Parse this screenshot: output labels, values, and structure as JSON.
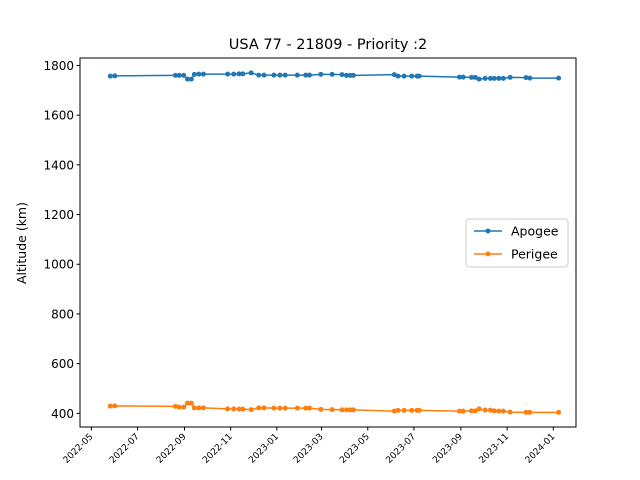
{
  "chart_data": {
    "type": "line",
    "title": "USA 77 - 21809 - Priority :2",
    "xlabel": "",
    "ylabel": "Altitude (km)",
    "x_axis_type": "date",
    "xlim": [
      "2022-04-16",
      "2024-01-31"
    ],
    "ylim": [
      345,
      1830
    ],
    "x_ticks": [
      "2022-05",
      "2022-07",
      "2022-09",
      "2022-11",
      "2023-01",
      "2023-03",
      "2023-05",
      "2023-07",
      "2023-09",
      "2023-11",
      "2024-01"
    ],
    "y_ticks": [
      400,
      600,
      800,
      1000,
      1200,
      1400,
      1600,
      1800
    ],
    "grid": false,
    "legend_position": "center-right",
    "series": [
      {
        "name": "Apogee",
        "color": "#1f77b4",
        "points": [
          [
            "2022-05-26",
            1757
          ],
          [
            "2022-06-01",
            1758
          ],
          [
            "2022-08-20",
            1760
          ],
          [
            "2022-08-25",
            1760
          ],
          [
            "2022-08-31",
            1760
          ],
          [
            "2022-09-05",
            1745
          ],
          [
            "2022-09-10",
            1745
          ],
          [
            "2022-09-14",
            1764
          ],
          [
            "2022-09-20",
            1765
          ],
          [
            "2022-09-26",
            1765
          ],
          [
            "2022-10-28",
            1765
          ],
          [
            "2022-11-05",
            1765
          ],
          [
            "2022-11-12",
            1766
          ],
          [
            "2022-11-17",
            1766
          ],
          [
            "2022-11-28",
            1770
          ],
          [
            "2022-12-08",
            1761
          ],
          [
            "2022-12-15",
            1761
          ],
          [
            "2022-12-28",
            1761
          ],
          [
            "2023-01-05",
            1761
          ],
          [
            "2023-01-12",
            1761
          ],
          [
            "2023-01-28",
            1761
          ],
          [
            "2023-02-08",
            1761
          ],
          [
            "2023-02-13",
            1761
          ],
          [
            "2023-02-28",
            1764
          ],
          [
            "2023-03-15",
            1764
          ],
          [
            "2023-03-28",
            1763
          ],
          [
            "2023-04-03",
            1760
          ],
          [
            "2023-04-08",
            1760
          ],
          [
            "2023-04-12",
            1760
          ],
          [
            "2023-06-05",
            1763
          ],
          [
            "2023-06-10",
            1757
          ],
          [
            "2023-06-18",
            1757
          ],
          [
            "2023-06-28",
            1757
          ],
          [
            "2023-07-05",
            1757
          ],
          [
            "2023-07-08",
            1757
          ],
          [
            "2023-08-30",
            1753
          ],
          [
            "2023-09-04",
            1753
          ],
          [
            "2023-09-15",
            1752
          ],
          [
            "2023-09-20",
            1752
          ],
          [
            "2023-09-25",
            1745
          ],
          [
            "2023-10-03",
            1748
          ],
          [
            "2023-10-10",
            1748
          ],
          [
            "2023-10-15",
            1748
          ],
          [
            "2023-10-21",
            1748
          ],
          [
            "2023-10-27",
            1748
          ],
          [
            "2023-11-05",
            1752
          ],
          [
            "2023-11-26",
            1751
          ],
          [
            "2023-12-01",
            1749
          ],
          [
            "2024-01-08",
            1749
          ]
        ]
      },
      {
        "name": "Perigee",
        "color": "#ff7f0e",
        "points": [
          [
            "2022-05-26",
            429
          ],
          [
            "2022-06-01",
            430
          ],
          [
            "2022-08-20",
            428
          ],
          [
            "2022-08-25",
            425
          ],
          [
            "2022-08-31",
            425
          ],
          [
            "2022-09-05",
            441
          ],
          [
            "2022-09-10",
            441
          ],
          [
            "2022-09-14",
            422
          ],
          [
            "2022-09-20",
            422
          ],
          [
            "2022-09-26",
            422
          ],
          [
            "2022-10-28",
            418
          ],
          [
            "2022-11-05",
            418
          ],
          [
            "2022-11-12",
            417
          ],
          [
            "2022-11-17",
            417
          ],
          [
            "2022-11-28",
            415
          ],
          [
            "2022-12-08",
            422
          ],
          [
            "2022-12-15",
            422
          ],
          [
            "2022-12-28",
            421
          ],
          [
            "2023-01-05",
            421
          ],
          [
            "2023-01-12",
            421
          ],
          [
            "2023-01-28",
            421
          ],
          [
            "2023-02-08",
            421
          ],
          [
            "2023-02-13",
            421
          ],
          [
            "2023-02-28",
            416
          ],
          [
            "2023-03-15",
            415
          ],
          [
            "2023-03-28",
            414
          ],
          [
            "2023-04-03",
            414
          ],
          [
            "2023-04-08",
            414
          ],
          [
            "2023-04-12",
            414
          ],
          [
            "2023-06-05",
            409
          ],
          [
            "2023-06-10",
            412
          ],
          [
            "2023-06-18",
            412
          ],
          [
            "2023-06-28",
            412
          ],
          [
            "2023-07-05",
            412
          ],
          [
            "2023-07-08",
            412
          ],
          [
            "2023-08-30",
            409
          ],
          [
            "2023-09-04",
            409
          ],
          [
            "2023-09-15",
            410
          ],
          [
            "2023-09-20",
            410
          ],
          [
            "2023-09-25",
            418
          ],
          [
            "2023-10-03",
            413
          ],
          [
            "2023-10-10",
            413
          ],
          [
            "2023-10-15",
            410
          ],
          [
            "2023-10-21",
            409
          ],
          [
            "2023-10-27",
            409
          ],
          [
            "2023-11-05",
            405
          ],
          [
            "2023-11-26",
            404
          ],
          [
            "2023-12-01",
            404
          ],
          [
            "2024-01-08",
            404
          ]
        ]
      }
    ]
  }
}
